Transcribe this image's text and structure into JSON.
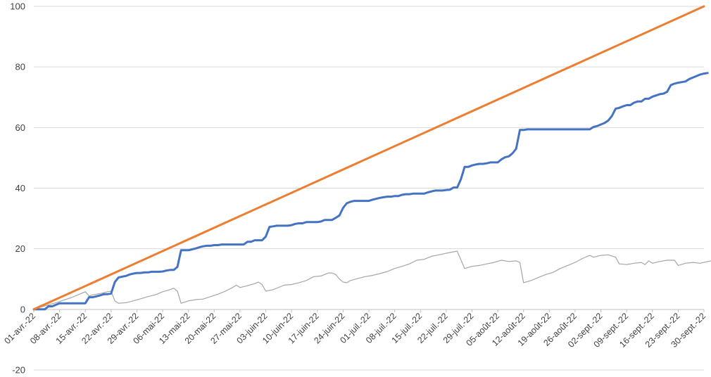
{
  "chart_data": {
    "type": "line",
    "title": "",
    "xlabel": "",
    "ylabel": "",
    "ylim": [
      -20,
      100
    ],
    "yticks": [
      -20,
      0,
      20,
      40,
      60,
      80,
      100
    ],
    "x_range_days": [
      0,
      182
    ],
    "x_tick_labels": [
      "01-avr.-22",
      "08-avr.-22",
      "15-avr.-22",
      "22-avr.-22",
      "29-avr.-22",
      "06-mai-22",
      "13-mai-22",
      "20-mai-22",
      "27-mai-22",
      "03-juin-22",
      "10-juin-22",
      "17-juin-22",
      "24-juin-22",
      "01-juil.-22",
      "08-juil.-22",
      "15-juil.-22",
      "22-juil.-22",
      "29-juil.-22",
      "05-août-22",
      "12-août-22",
      "19-août-22",
      "26-août-22",
      "02-sept.-22",
      "09-sept.-22",
      "16-sept.-22",
      "23-sept.-22",
      "30-sept.-22"
    ],
    "grid": true,
    "legend": "none",
    "series": [
      {
        "color": "#ED7D31",
        "points": [
          [
            0,
            0
          ],
          [
            182,
            100
          ]
        ]
      },
      {
        "color": "#4472C4",
        "points": [
          [
            0,
            0
          ],
          [
            3,
            0
          ],
          [
            4,
            1
          ],
          [
            5,
            1
          ],
          [
            6,
            1.5
          ],
          [
            7,
            2
          ],
          [
            8,
            2
          ],
          [
            9,
            2
          ],
          [
            10,
            2
          ],
          [
            11,
            2
          ],
          [
            12,
            2
          ],
          [
            13,
            2
          ],
          [
            14,
            2
          ],
          [
            15,
            4
          ],
          [
            16,
            4
          ],
          [
            17,
            4.3
          ],
          [
            18,
            4.6
          ],
          [
            19,
            5
          ],
          [
            20,
            5
          ],
          [
            21,
            5.2
          ],
          [
            22,
            9
          ],
          [
            23,
            10.5
          ],
          [
            24,
            10.8
          ],
          [
            25,
            11
          ],
          [
            26,
            11.5
          ],
          [
            27,
            11.8
          ],
          [
            28,
            12
          ],
          [
            29,
            12
          ],
          [
            30,
            12.2
          ],
          [
            31,
            12.2
          ],
          [
            32,
            12.4
          ],
          [
            33,
            12.4
          ],
          [
            34,
            12.4
          ],
          [
            35,
            12.5
          ],
          [
            36,
            12.8
          ],
          [
            37,
            13
          ],
          [
            38,
            13
          ],
          [
            39,
            14
          ],
          [
            40,
            19.5
          ],
          [
            41,
            19.5
          ],
          [
            42,
            19.5
          ],
          [
            43,
            19.8
          ],
          [
            44,
            20.1
          ],
          [
            45,
            20.5
          ],
          [
            46,
            20.8
          ],
          [
            47,
            21
          ],
          [
            48,
            21
          ],
          [
            49,
            21.2
          ],
          [
            50,
            21.2
          ],
          [
            51,
            21.4
          ],
          [
            52,
            21.4
          ],
          [
            53,
            21.4
          ],
          [
            54,
            21.4
          ],
          [
            55,
            21.4
          ],
          [
            56,
            21.4
          ],
          [
            57,
            21.4
          ],
          [
            58,
            22.3
          ],
          [
            59,
            22.3
          ],
          [
            60,
            22.8
          ],
          [
            61,
            22.8
          ],
          [
            62,
            22.8
          ],
          [
            63,
            24
          ],
          [
            64,
            27.2
          ],
          [
            65,
            27.4
          ],
          [
            66,
            27.6
          ],
          [
            67,
            27.6
          ],
          [
            68,
            27.6
          ],
          [
            69,
            27.6
          ],
          [
            70,
            27.8
          ],
          [
            71,
            28.2
          ],
          [
            72,
            28.4
          ],
          [
            73,
            28.4
          ],
          [
            74,
            28.8
          ],
          [
            75,
            28.8
          ],
          [
            76,
            28.8
          ],
          [
            77,
            28.8
          ],
          [
            78,
            29
          ],
          [
            79,
            29.5
          ],
          [
            80,
            29.5
          ],
          [
            81,
            29.5
          ],
          [
            82,
            30.2
          ],
          [
            83,
            31
          ],
          [
            84,
            33.5
          ],
          [
            85,
            35
          ],
          [
            86,
            35.5
          ],
          [
            87,
            35.8
          ],
          [
            88,
            35.8
          ],
          [
            89,
            35.8
          ],
          [
            90,
            35.8
          ],
          [
            91,
            35.8
          ],
          [
            92,
            36.2
          ],
          [
            93,
            36.5
          ],
          [
            94,
            36.8
          ],
          [
            95,
            37
          ],
          [
            96,
            37.2
          ],
          [
            97,
            37.2
          ],
          [
            98,
            37.4
          ],
          [
            99,
            37.4
          ],
          [
            100,
            37.8
          ],
          [
            101,
            38
          ],
          [
            102,
            38
          ],
          [
            103,
            38.2
          ],
          [
            104,
            38.2
          ],
          [
            105,
            38.2
          ],
          [
            106,
            38.2
          ],
          [
            107,
            38.6
          ],
          [
            108,
            38.9
          ],
          [
            109,
            39.2
          ],
          [
            110,
            39.2
          ],
          [
            111,
            39.2
          ],
          [
            112,
            39.4
          ],
          [
            113,
            39.5
          ],
          [
            114,
            40.2
          ],
          [
            115,
            40.2
          ],
          [
            116,
            43
          ],
          [
            117,
            47
          ],
          [
            118,
            47
          ],
          [
            119,
            47.5
          ],
          [
            120,
            47.8
          ],
          [
            121,
            48
          ],
          [
            122,
            48
          ],
          [
            123,
            48.2
          ],
          [
            124,
            48.5
          ],
          [
            125,
            48.5
          ],
          [
            126,
            48.5
          ],
          [
            127,
            49.5
          ],
          [
            128,
            50.2
          ],
          [
            129,
            50.5
          ],
          [
            130,
            51.5
          ],
          [
            131,
            53
          ],
          [
            132,
            59.2
          ],
          [
            133,
            59.2
          ],
          [
            134,
            59.4
          ],
          [
            135,
            59.4
          ],
          [
            136,
            59.4
          ],
          [
            137,
            59.4
          ],
          [
            138,
            59.4
          ],
          [
            139,
            59.4
          ],
          [
            140,
            59.4
          ],
          [
            141,
            59.4
          ],
          [
            142,
            59.4
          ],
          [
            143,
            59.4
          ],
          [
            144,
            59.4
          ],
          [
            145,
            59.4
          ],
          [
            146,
            59.4
          ],
          [
            147,
            59.4
          ],
          [
            148,
            59.4
          ],
          [
            149,
            59.4
          ],
          [
            150,
            59.4
          ],
          [
            151,
            59.4
          ],
          [
            152,
            60.2
          ],
          [
            153,
            60.5
          ],
          [
            154,
            61
          ],
          [
            155,
            61.5
          ],
          [
            156,
            62.3
          ],
          [
            157,
            63.8
          ],
          [
            158,
            66.2
          ],
          [
            159,
            66.5
          ],
          [
            160,
            67
          ],
          [
            161,
            67.4
          ],
          [
            162,
            67.4
          ],
          [
            163,
            68.2
          ],
          [
            164,
            68.6
          ],
          [
            165,
            68.6
          ],
          [
            166,
            69.5
          ],
          [
            167,
            69.5
          ],
          [
            168,
            70.2
          ],
          [
            169,
            70.6
          ],
          [
            170,
            71
          ],
          [
            171,
            71.2
          ],
          [
            172,
            71.8
          ],
          [
            173,
            74
          ],
          [
            174,
            74.5
          ],
          [
            175,
            74.8
          ],
          [
            176,
            75
          ],
          [
            177,
            75.2
          ],
          [
            178,
            76
          ],
          [
            179,
            76.5
          ],
          [
            180,
            77
          ],
          [
            181,
            77.5
          ],
          [
            182,
            77.8
          ],
          [
            183,
            78
          ]
        ]
      },
      {
        "color": "#A5A5A5",
        "points": [
          [
            0,
            0
          ],
          [
            2,
            0.8
          ],
          [
            4,
            1.5
          ],
          [
            6,
            2.2
          ],
          [
            8,
            3
          ],
          [
            10,
            3.8
          ],
          [
            12,
            4.8
          ],
          [
            14,
            5.8
          ],
          [
            15,
            4.4
          ],
          [
            16,
            4.8
          ],
          [
            18,
            5.2
          ],
          [
            20,
            5.8
          ],
          [
            21,
            6
          ],
          [
            22,
            2.8
          ],
          [
            23,
            2
          ],
          [
            25,
            2.2
          ],
          [
            27,
            2.8
          ],
          [
            29,
            3.5
          ],
          [
            31,
            4.2
          ],
          [
            33,
            4.8
          ],
          [
            35,
            5.8
          ],
          [
            37,
            6.5
          ],
          [
            38,
            7
          ],
          [
            39,
            6
          ],
          [
            40,
            2
          ],
          [
            42,
            2.8
          ],
          [
            44,
            3.2
          ],
          [
            46,
            3.4
          ],
          [
            48,
            4.2
          ],
          [
            50,
            5
          ],
          [
            52,
            6
          ],
          [
            54,
            7.2
          ],
          [
            55,
            8
          ],
          [
            56,
            7.2
          ],
          [
            58,
            7.8
          ],
          [
            60,
            8.5
          ],
          [
            61,
            9
          ],
          [
            62,
            8.2
          ],
          [
            63,
            6
          ],
          [
            65,
            6.5
          ],
          [
            67,
            7.5
          ],
          [
            68,
            8
          ],
          [
            70,
            8.2
          ],
          [
            72,
            8.8
          ],
          [
            74,
            9.5
          ],
          [
            76,
            10.8
          ],
          [
            78,
            11
          ],
          [
            80,
            12
          ],
          [
            81,
            12
          ],
          [
            82,
            11.5
          ],
          [
            83,
            10
          ],
          [
            84,
            9
          ],
          [
            85,
            8.8
          ],
          [
            86,
            9.5
          ],
          [
            88,
            10.2
          ],
          [
            90,
            10.8
          ],
          [
            92,
            11.2
          ],
          [
            94,
            11.8
          ],
          [
            96,
            12.5
          ],
          [
            98,
            13.5
          ],
          [
            100,
            14.2
          ],
          [
            102,
            15
          ],
          [
            104,
            16.2
          ],
          [
            106,
            16.5
          ],
          [
            108,
            17.5
          ],
          [
            110,
            18
          ],
          [
            112,
            18.5
          ],
          [
            114,
            19
          ],
          [
            115,
            19.2
          ],
          [
            117,
            13.5
          ],
          [
            119,
            14.2
          ],
          [
            121,
            14.5
          ],
          [
            123,
            15
          ],
          [
            125,
            15.5
          ],
          [
            127,
            16.2
          ],
          [
            129,
            15.8
          ],
          [
            131,
            16
          ],
          [
            132,
            15.5
          ],
          [
            133,
            8.8
          ],
          [
            135,
            9.5
          ],
          [
            137,
            10.5
          ],
          [
            139,
            11.5
          ],
          [
            141,
            12.2
          ],
          [
            143,
            13.5
          ],
          [
            145,
            14.5
          ],
          [
            147,
            15.5
          ],
          [
            149,
            16.8
          ],
          [
            151,
            17.8
          ],
          [
            152,
            17.2
          ],
          [
            154,
            17.8
          ],
          [
            156,
            18
          ],
          [
            158,
            17.2
          ],
          [
            159,
            15
          ],
          [
            161,
            14.8
          ],
          [
            163,
            15.2
          ],
          [
            165,
            15.5
          ],
          [
            166,
            14.8
          ],
          [
            167,
            16
          ],
          [
            168,
            15.2
          ],
          [
            170,
            15.8
          ],
          [
            172,
            16.2
          ],
          [
            174,
            16.2
          ],
          [
            175,
            14.5
          ],
          [
            177,
            15.2
          ],
          [
            179,
            15.5
          ],
          [
            181,
            15.2
          ],
          [
            183,
            15.8
          ],
          [
            185,
            16.2
          ],
          [
            186,
            15.8
          ],
          [
            187,
            16.2
          ],
          [
            189,
            16.2
          ],
          [
            190,
            16
          ]
        ]
      }
    ]
  }
}
